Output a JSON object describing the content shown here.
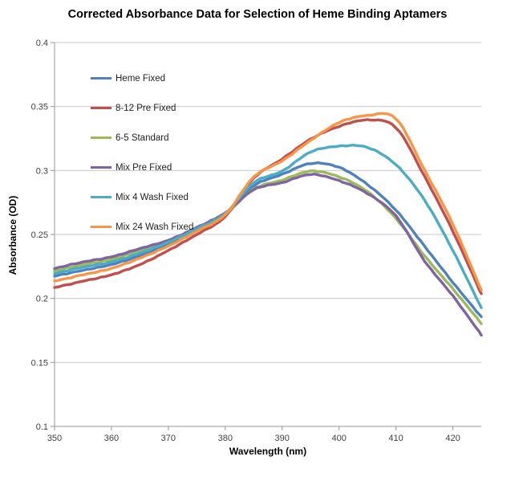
{
  "page": {
    "background": "#ffffff"
  },
  "chart_data": {
    "type": "line",
    "title": "Corrected Absorbance Data for Selection of Heme Binding Aptamers",
    "xlabel": "Wavelength (nm)",
    "ylabel": "Absorbance (OD)",
    "xlim": [
      350,
      425
    ],
    "ylim": [
      0.1,
      0.4
    ],
    "xticks": [
      350,
      360,
      370,
      380,
      390,
      400,
      410,
      420
    ],
    "yticks": [
      "0.1",
      "0.15",
      "0.2",
      "0.25",
      "0.3",
      "0.35",
      "0.4"
    ],
    "grid": "horizontal-only",
    "legend_position": "top-left-inside",
    "axis_color": "#969696",
    "grid_color": "#c9c9c9",
    "tick_label_color": "#3f3f3f",
    "x": [
      350,
      355,
      360,
      365,
      370,
      375,
      380,
      385,
      390,
      395,
      400,
      405,
      410,
      415,
      420,
      425
    ],
    "series": [
      {
        "name": "Heme Fixed",
        "color": "#4F81BD",
        "values": [
          0.2175,
          0.222,
          0.2265,
          0.2335,
          0.2425,
          0.2535,
          0.2665,
          0.288,
          0.297,
          0.3055,
          0.3025,
          0.289,
          0.269,
          0.241,
          0.2125,
          0.1855
        ]
      },
      {
        "name": "8-12 Pre Fixed",
        "color": "#C0504D",
        "values": [
          0.2085,
          0.2135,
          0.2185,
          0.2265,
          0.2375,
          0.25,
          0.264,
          0.294,
          0.309,
          0.3245,
          0.3345,
          0.3395,
          0.3335,
          0.2955,
          0.2525,
          0.2035
        ]
      },
      {
        "name": "6-5 Standard",
        "color": "#9BBB59",
        "values": [
          0.2215,
          0.2265,
          0.2305,
          0.2375,
          0.2445,
          0.2545,
          0.266,
          0.2855,
          0.2925,
          0.2995,
          0.295,
          0.2835,
          0.2625,
          0.2335,
          0.2075,
          0.1805
        ]
      },
      {
        "name": "Mix Pre Fixed",
        "color": "#8064A2",
        "values": [
          0.2235,
          0.2285,
          0.2325,
          0.239,
          0.2455,
          0.2555,
          0.267,
          0.285,
          0.2905,
          0.297,
          0.292,
          0.282,
          0.2645,
          0.2295,
          0.202,
          0.1715
        ]
      },
      {
        "name": "Mix 4 Wash Fixed",
        "color": "#4BACC6",
        "values": [
          0.2195,
          0.2245,
          0.2285,
          0.2355,
          0.244,
          0.2545,
          0.2665,
          0.2905,
          0.2995,
          0.3145,
          0.319,
          0.318,
          0.3045,
          0.277,
          0.2375,
          0.1925
        ]
      },
      {
        "name": "Mix 24 Wash Fixed",
        "color": "#F79646",
        "values": [
          0.2135,
          0.2185,
          0.2235,
          0.2315,
          0.241,
          0.2525,
          0.2655,
          0.295,
          0.3075,
          0.3235,
          0.3375,
          0.343,
          0.3405,
          0.3005,
          0.258,
          0.2065
        ]
      }
    ]
  }
}
